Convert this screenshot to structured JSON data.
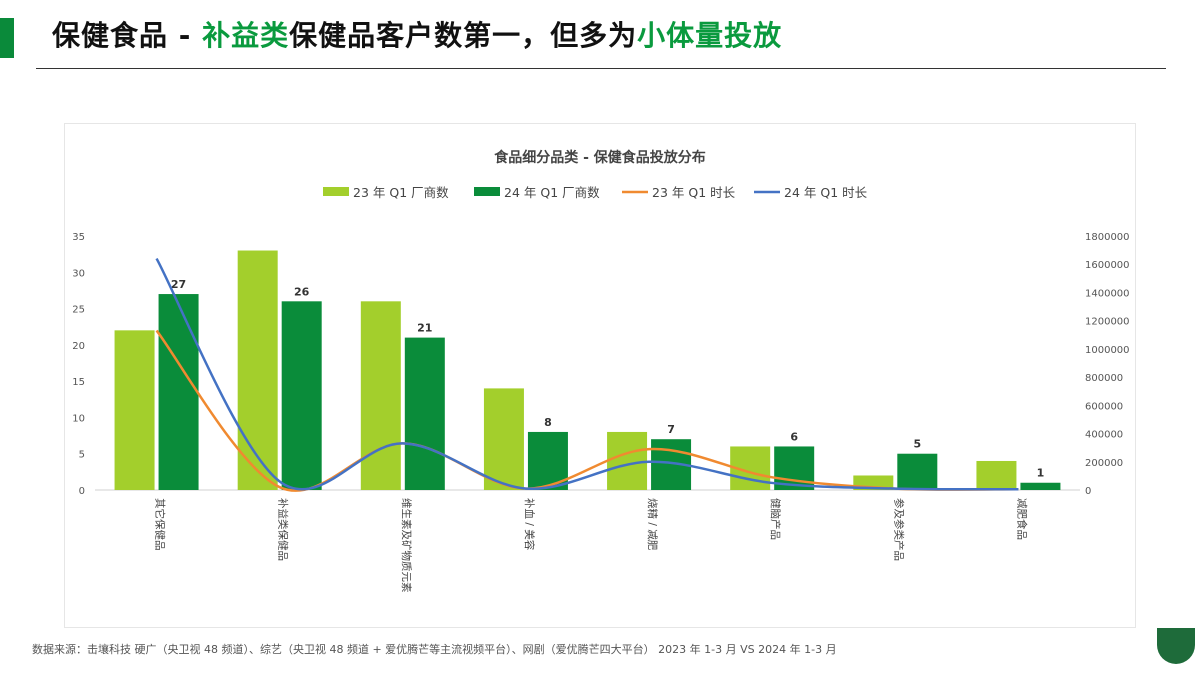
{
  "page": {
    "title_parts": [
      "保健食品 - ",
      "补益类",
      "保健品客户数第一，但多为",
      "小体量投放"
    ],
    "footer": "数据来源：击壤科技 硬广（央卫视 48 频道）、综艺（央卫视 48 频道 + 爱优腾芒等主流视频平台）、网剧（爱优腾芒四大平台） 2023 年 1-3 月 VS 2024 年 1-3 月"
  },
  "colors": {
    "bar_23": "#a3cf2c",
    "bar_24": "#0a8c3a",
    "line_23": "#f08a30",
    "line_24": "#4472c4",
    "accent": "#0a9a3e"
  },
  "chart_data": {
    "type": "bar",
    "title": "食品细分品类 - 保健食品投放分布",
    "legend_position": "top",
    "categories": [
      "其它保健品",
      "补益类保健品",
      "维生素及矿物质元素",
      "补血 / 美容",
      "烧精 / 减肥",
      "健脑产品",
      "参及参类产品",
      "减肥食品"
    ],
    "series": [
      {
        "name": "23 年 Q1 厂商数",
        "kind": "bar",
        "axis": "left",
        "values": [
          22,
          33,
          26,
          14,
          8,
          6,
          2,
          4
        ]
      },
      {
        "name": "24 年 Q1 厂商数",
        "kind": "bar",
        "axis": "left",
        "values": [
          27,
          26,
          21,
          8,
          7,
          6,
          5,
          1
        ],
        "data_labels": [
          "27",
          "26",
          "21",
          "8",
          "7",
          "6",
          "5",
          "1"
        ]
      },
      {
        "name": "23 年 Q1 时长",
        "kind": "line",
        "axis": "right",
        "values": [
          1130000,
          20000,
          330000,
          10000,
          290000,
          90000,
          10000,
          5000
        ]
      },
      {
        "name": "24 年 Q1 时长",
        "kind": "line",
        "axis": "right",
        "values": [
          1640000,
          60000,
          330000,
          10000,
          200000,
          50000,
          10000,
          5000
        ]
      }
    ],
    "y_left": {
      "min": 0,
      "max": 35,
      "ticks": [
        "0",
        "5",
        "10",
        "15",
        "20",
        "25",
        "30",
        "35"
      ]
    },
    "y_right": {
      "min": 0,
      "max": 1800000,
      "ticks": [
        "0",
        "200000",
        "400000",
        "600000",
        "800000",
        "1000000",
        "1200000",
        "1400000",
        "1600000",
        "1800000"
      ]
    },
    "grid": false
  }
}
